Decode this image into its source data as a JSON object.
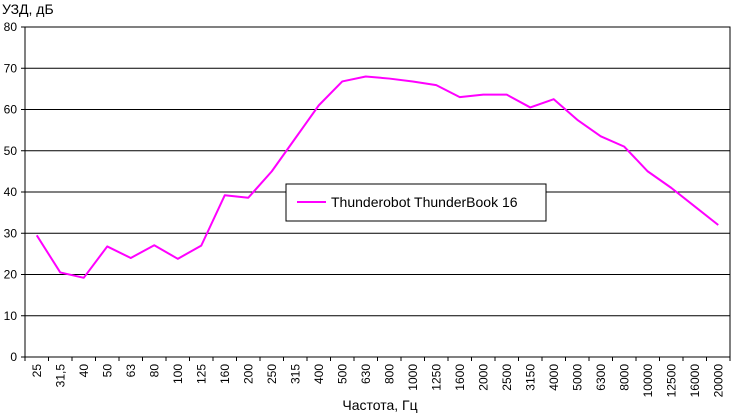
{
  "chart_data": {
    "type": "line",
    "ylabel": "УЗД, дБ",
    "xlabel": "Частота, Гц",
    "ylim": [
      0,
      80
    ],
    "yticks": [
      0,
      10,
      20,
      30,
      40,
      50,
      60,
      70,
      80
    ],
    "grid": true,
    "legend_position": "center",
    "categories": [
      "25",
      "31,5",
      "40",
      "50",
      "63",
      "80",
      "100",
      "125",
      "160",
      "200",
      "250",
      "315",
      "400",
      "500",
      "630",
      "800",
      "1000",
      "1250",
      "1600",
      "2000",
      "2500",
      "3150",
      "4000",
      "5000",
      "6300",
      "8000",
      "10000",
      "12500",
      "16000",
      "20000"
    ],
    "series": [
      {
        "name": "Thunderobot ThunderBook 16",
        "color": "#ff00ff",
        "values": [
          29.5,
          20.5,
          19.2,
          26.8,
          24.0,
          27.1,
          23.8,
          27.0,
          39.2,
          38.6,
          45.0,
          53.0,
          61.0,
          66.8,
          68.0,
          67.5,
          66.8,
          65.9,
          63.0,
          63.6,
          63.6,
          60.5,
          62.5,
          57.5,
          53.5,
          51.0,
          45.0,
          41.0,
          36.5,
          32.0
        ]
      }
    ]
  }
}
